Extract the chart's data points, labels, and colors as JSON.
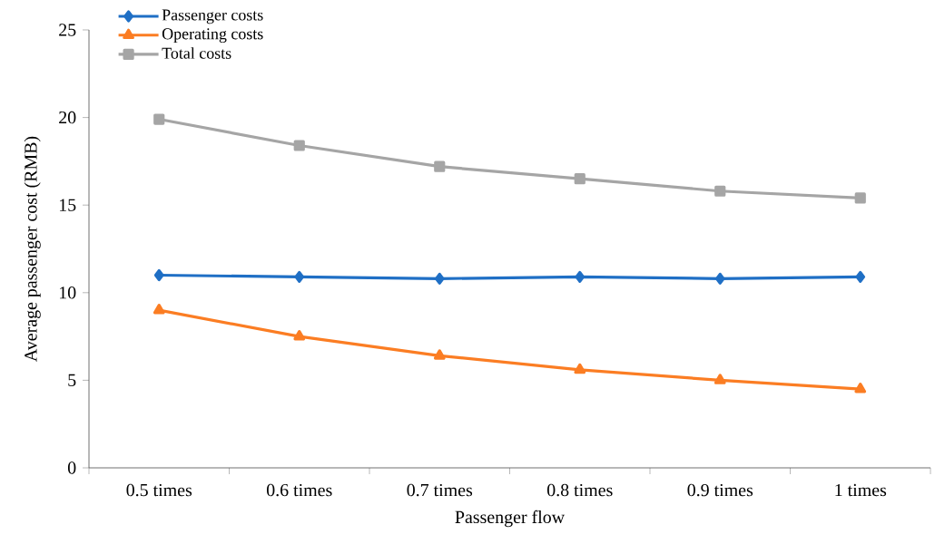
{
  "chart_data": {
    "type": "line",
    "xlabel": "Passenger flow",
    "ylabel": "Average passenger cost (RMB)",
    "categories": [
      "0.5 times",
      "0.6 times",
      "0.7 times",
      "0.8 times",
      "0.9 times",
      "1 times"
    ],
    "series": [
      {
        "name": "Passenger costs",
        "color": "#1f6fc5",
        "marker": "diamond",
        "values": [
          11.0,
          10.9,
          10.8,
          10.9,
          10.8,
          10.9
        ]
      },
      {
        "name": "Operating costs",
        "color": "#fb7d23",
        "marker": "triangle",
        "values": [
          9.0,
          7.5,
          6.4,
          5.6,
          5.0,
          4.5
        ]
      },
      {
        "name": "Total costs",
        "color": "#a5a5a5",
        "marker": "square",
        "values": [
          19.9,
          18.4,
          17.2,
          16.5,
          15.8,
          15.4
        ]
      }
    ],
    "ylim": [
      0,
      25
    ],
    "yticks": [
      0,
      5,
      10,
      15,
      20,
      25
    ],
    "grid": false,
    "legend": "top left",
    "line_style": "solid"
  }
}
